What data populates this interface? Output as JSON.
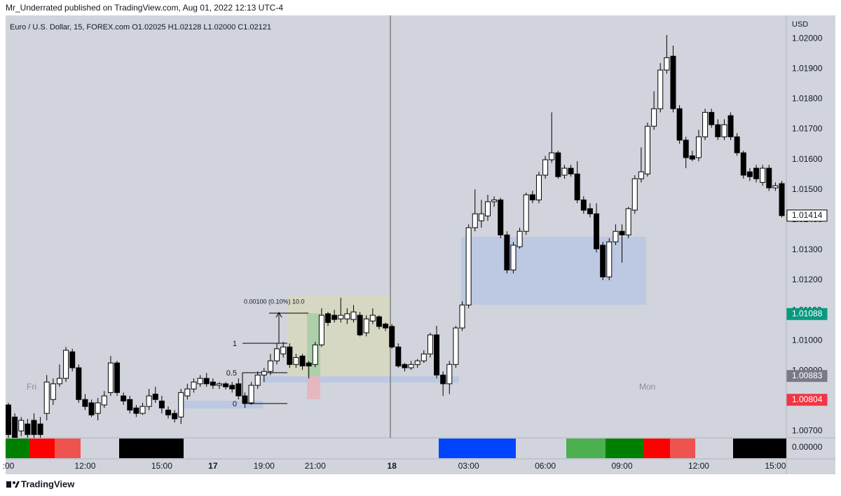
{
  "header": "Mr_Underrated published on TradingView.com, Aug 01, 2022 12:13 UTC-4",
  "footer": "TradingView",
  "chart_data": {
    "type": "candlestick",
    "title": "Euro / U.S. Dollar, 15, FOREX.com  O1.02025  H1.02128  L1.02000  C1.02121",
    "currency": "USD",
    "annotations": {
      "session_left": "Fri",
      "session_right": "Mon",
      "measure": "0.00100 (0.10%) 10.0",
      "fib_1": "1",
      "fib_half": "0.5",
      "fib_0": "0"
    },
    "categories": [
      ":00",
      null,
      null,
      null,
      null,
      null,
      null,
      null,
      null,
      null,
      null,
      null,
      "12:00",
      null,
      null,
      null,
      null,
      null,
      null,
      null,
      null,
      null,
      null,
      null,
      "15:00",
      null,
      null,
      null,
      null,
      null,
      null,
      null,
      "17",
      null,
      null,
      null,
      null,
      null,
      null,
      null,
      "19:00",
      null,
      null,
      null,
      null,
      null,
      null,
      null,
      "21:00",
      null,
      null,
      null,
      null,
      null,
      null,
      null,
      null,
      null,
      null,
      null,
      "18",
      null,
      null,
      null,
      null,
      null,
      null,
      null,
      null,
      null,
      null,
      null,
      "03:00",
      null,
      null,
      null,
      null,
      null,
      null,
      null,
      null,
      null,
      null,
      null,
      "06:00",
      null,
      null,
      null,
      null,
      null,
      null,
      null,
      null,
      null,
      null,
      null,
      "09:00",
      null,
      null,
      null,
      null,
      null,
      null,
      null,
      null,
      null,
      null,
      null,
      "12:00",
      null,
      null,
      null,
      null,
      null,
      null,
      null,
      null,
      null,
      null,
      null,
      "15:00",
      null
    ],
    "open": [
      1.00787,
      1.00747,
      1.00701,
      1.00724,
      1.00736,
      1.00724,
      1.00759,
      1.00805,
      1.00857,
      1.00875,
      1.00963,
      1.0091,
      1.00805,
      1.00794,
      1.00759,
      1.00787,
      1.00828,
      1.00926,
      1.00817,
      1.00805,
      1.00777,
      1.00759,
      1.00782,
      1.00823,
      1.008,
      1.0077,
      1.00759,
      1.00747,
      1.00817,
      1.0084,
      1.00857,
      1.00875,
      1.00863,
      1.00852,
      1.00857,
      1.00852,
      1.00857,
      1.00817,
      1.00794,
      1.00852,
      1.00886,
      1.00898,
      1.00933,
      1.00956,
      1.00979,
      1.00921,
      1.00949,
      1.00926,
      1.00921,
      1.00986,
      1.01089,
      1.01084,
      1.01072,
      1.01072,
      1.0107,
      1.01084,
      1.01026,
      1.01065,
      1.01079,
      1.01055,
      1.01047,
      1.00979,
      1.00921,
      1.0091,
      1.00921,
      1.00933,
      1.00956,
      1.01019,
      1.00886,
      1.00857,
      1.00921,
      1.01042,
      1.01118,
      1.01374,
      1.01397,
      1.01413,
      1.0146,
      1.01466,
      1.0135,
      1.01234,
      1.01311,
      1.01362,
      1.01483,
      1.01466,
      1.01548,
      1.01599,
      1.01622,
      1.01548,
      1.01571,
      1.01552,
      1.01466,
      1.01437,
      1.0142,
      1.01316,
      1.01211,
      1.01327,
      1.01362,
      1.0135,
      1.01432,
      1.01536,
      1.01552,
      1.0171,
      1.01768,
      1.01896,
      1.01942,
      1.01768,
      1.01664,
      1.01612,
      1.01606,
      1.01675,
      1.01756,
      1.01715,
      1.01675,
      1.01745,
      1.01675,
      1.01622,
      1.01559,
      1.01571,
      1.01524,
      1.01571,
      1.01506,
      1.0152
    ],
    "high": [
      1.00794,
      1.00759,
      1.00747,
      1.00741,
      1.00759,
      1.00747,
      1.00886,
      1.00875,
      1.00921,
      1.00979,
      1.00973,
      1.00921,
      1.00823,
      1.00805,
      1.0081,
      1.00833,
      1.00949,
      1.00933,
      1.00828,
      1.00817,
      1.00787,
      1.00794,
      1.0084,
      1.00847,
      1.00817,
      1.00782,
      1.0077,
      1.0084,
      1.00857,
      1.00875,
      1.00886,
      1.00893,
      1.00875,
      1.00863,
      1.00863,
      1.00863,
      1.00875,
      1.00828,
      1.00863,
      1.00898,
      1.0091,
      1.00956,
      1.00991,
      1.00996,
      1.00991,
      1.00956,
      1.00956,
      1.00933,
      1.00996,
      1.01107,
      1.01095,
      1.01102,
      1.01142,
      1.01107,
      1.01118,
      1.01095,
      1.01084,
      1.01107,
      1.01084,
      1.0106,
      1.01055,
      1.00991,
      1.00926,
      1.00933,
      1.00939,
      1.00968,
      1.01026,
      1.01049,
      1.00898,
      1.00933,
      1.01049,
      1.0113,
      1.01385,
      1.01501,
      1.01466,
      1.01483,
      1.01478,
      1.01473,
      1.01362,
      1.01327,
      1.01374,
      1.0149,
      1.01496,
      1.01559,
      1.01612,
      1.01756,
      1.01629,
      1.01582,
      1.01582,
      1.01594,
      1.01478,
      1.01455,
      1.01455,
      1.01327,
      1.01339,
      1.01385,
      1.01385,
      1.01443,
      1.01548,
      1.0164,
      1.01722,
      1.01826,
      1.01919,
      1.02012,
      1.01977,
      1.0178,
      1.01675,
      1.01629,
      1.01698,
      1.01768,
      1.01768,
      1.01733,
      1.01733,
      1.01756,
      1.01687,
      1.01629,
      1.01571,
      1.01582,
      1.01582,
      1.01582,
      1.01524,
      1.01529
    ],
    "low": [
      1.00678,
      1.00678,
      1.00684,
      1.00678,
      1.00678,
      1.00678,
      1.00736,
      1.00787,
      1.00847,
      1.00863,
      1.00898,
      1.00794,
      1.0077,
      1.00747,
      1.00736,
      1.00777,
      1.00817,
      1.00817,
      1.00787,
      1.00759,
      1.00747,
      1.00754,
      1.0077,
      1.00794,
      1.00759,
      1.00742,
      1.00729,
      1.00724,
      1.00805,
      1.00828,
      1.00847,
      1.00847,
      1.0084,
      1.0084,
      1.00838,
      1.00828,
      1.00805,
      1.00777,
      1.00787,
      1.0084,
      1.00863,
      1.00886,
      1.00921,
      1.00944,
      1.0091,
      1.0091,
      1.00903,
      1.00875,
      1.00912,
      1.00979,
      1.01049,
      1.0106,
      1.0106,
      1.01055,
      1.0106,
      1.01014,
      1.01014,
      1.01055,
      1.01037,
      1.01032,
      1.00973,
      1.0091,
      1.00898,
      1.00903,
      1.0091,
      1.00926,
      1.00944,
      1.00875,
      1.00817,
      1.00823,
      1.0091,
      1.01032,
      1.01107,
      1.01362,
      1.01374,
      1.01397,
      1.01443,
      1.01339,
      1.01223,
      1.01223,
      1.01304,
      1.0135,
      1.01455,
      1.01455,
      1.01536,
      1.01589,
      1.01536,
      1.01536,
      1.01543,
      1.01455,
      1.0142,
      1.01408,
      1.01292,
      1.012,
      1.012,
      1.01316,
      1.01258,
      1.01339,
      1.0142,
      1.01524,
      1.01543,
      1.01698,
      1.01756,
      1.01884,
      1.01756,
      1.01652,
      1.01571,
      1.01594,
      1.01594,
      1.01664,
      1.01705,
      1.01664,
      1.01664,
      1.01664,
      1.01612,
      1.01536,
      1.01529,
      1.01524,
      1.01513,
      1.01496,
      1.01496,
      1.01408
    ],
    "close": [
      1.00689,
      1.00678,
      1.00736,
      1.00689,
      1.00689,
      1.00689,
      1.00863,
      1.00857,
      1.00875,
      1.00968,
      1.0091,
      1.00805,
      1.00782,
      1.00754,
      1.00794,
      1.00817,
      1.00926,
      1.00828,
      1.008,
      1.0077,
      1.00759,
      1.00782,
      1.00817,
      1.00805,
      1.00777,
      1.00754,
      1.00741,
      1.00828,
      1.0084,
      1.00863,
      1.00875,
      1.00857,
      1.00852,
      1.00857,
      1.00847,
      1.0084,
      1.00817,
      1.00794,
      1.00852,
      1.00886,
      1.00898,
      1.00933,
      1.00973,
      1.00979,
      1.00921,
      1.00944,
      1.00916,
      1.00916,
      1.00986,
      1.01084,
      1.0106,
      1.0107,
      1.01084,
      1.01089,
      1.01095,
      1.01019,
      1.01072,
      1.01084,
      1.01047,
      1.01042,
      1.00979,
      1.00916,
      1.0091,
      1.00921,
      1.00933,
      1.00956,
      1.01019,
      1.00886,
      1.00857,
      1.00921,
      1.01042,
      1.01118,
      1.01374,
      1.0142,
      1.0142,
      1.0146,
      1.01466,
      1.0135,
      1.01234,
      1.01316,
      1.01362,
      1.01483,
      1.01466,
      1.01548,
      1.01599,
      1.01622,
      1.01543,
      1.01571,
      1.01552,
      1.01466,
      1.01432,
      1.0142,
      1.01304,
      1.01211,
      1.01327,
      1.01362,
      1.0135,
      1.01437,
      1.01536,
      1.01559,
      1.0171,
      1.01768,
      1.01896,
      1.01937,
      1.01768,
      1.01664,
      1.01606,
      1.01601,
      1.01675,
      1.01756,
      1.01715,
      1.01675,
      1.01715,
      1.01675,
      1.01622,
      1.01548,
      1.01543,
      1.01536,
      1.01571,
      1.01506,
      1.01513,
      1.01414
    ],
    "up_color": "#ffffff",
    "down_color": "#000000",
    "wick_color": "#000000",
    "ylim": [
      1.00678,
      1.02077
    ],
    "yticks": [
      {
        "value": 1.007,
        "label": "1.00700"
      },
      {
        "value": 1.008,
        "label": "1.00800"
      },
      {
        "value": 1.009,
        "label": "1.00900"
      },
      {
        "value": 1.01,
        "label": "1.01000"
      },
      {
        "value": 1.011,
        "label": "1.01100"
      },
      {
        "value": 1.012,
        "label": "1.01200"
      },
      {
        "value": 1.013,
        "label": "1.01300"
      },
      {
        "value": 1.014,
        "label": "1.01400"
      },
      {
        "value": 1.015,
        "label": "1.01500"
      },
      {
        "value": 1.016,
        "label": "1.01600"
      },
      {
        "value": 1.017,
        "label": "1.01700"
      },
      {
        "value": 1.018,
        "label": "1.01800"
      },
      {
        "value": 1.019,
        "label": "1.01900"
      },
      {
        "value": 1.02,
        "label": "1.02000"
      }
    ],
    "grid": false,
    "price_labels": [
      {
        "value": 1.01414,
        "color": "#ffffff"
      },
      {
        "value": 1.01088,
        "color": "#089981"
      },
      {
        "value": 1.00883,
        "color": "#787b86"
      },
      {
        "value": 1.00804,
        "color": "#f23645"
      }
    ],
    "indicator_level": {
      "value": 0,
      "label": "0.00000"
    }
  }
}
